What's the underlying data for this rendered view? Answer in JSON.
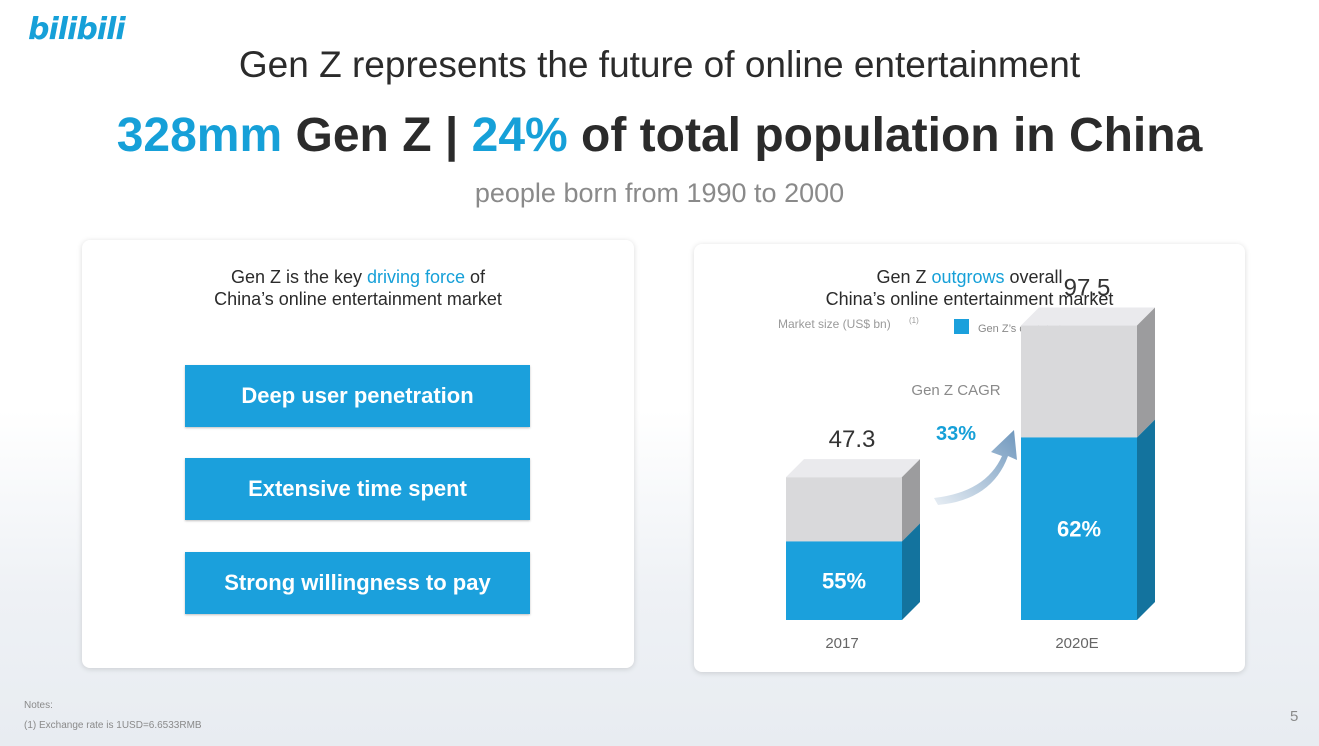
{
  "logo": "bilibili",
  "title": "Gen Z represents the future of online entertainment",
  "headline": {
    "part1": "328mm",
    "part2": " Gen Z | ",
    "part3": "24%",
    "part4": " of total population in China"
  },
  "subtitle": "people born from 1990 to 2000",
  "left_panel": {
    "heading_pre": "Gen Z is the key ",
    "heading_accent": "driving force",
    "heading_post": " of",
    "heading_line2": "China’s online entertainment market",
    "features": [
      "Deep user penetration",
      "Extensive time spent",
      "Strong willingness to pay"
    ]
  },
  "right_panel": {
    "heading_pre": "Gen Z ",
    "heading_accent": "outgrows",
    "heading_post": " overall",
    "heading_line2": "China’s online entertainment market"
  },
  "chart_data": {
    "type": "bar",
    "title": "Gen Z outgrows overall China’s online entertainment market",
    "ylabel": "Market size (US$ bn)",
    "ylabel_note": "(1)",
    "categories": [
      "2017",
      "2020E"
    ],
    "totals": [
      47.3,
      97.5
    ],
    "total_labels": [
      "47.3",
      "97.5"
    ],
    "genz_share_labels": [
      "55%",
      "62%"
    ],
    "genz_share": [
      0.55,
      0.62
    ],
    "legend": "Gen Z’s contribution",
    "cagr_label": "Gen Z CAGR",
    "cagr_value": "33%",
    "ylim": [
      0,
      100
    ],
    "colors": {
      "genz": "#1ba0dc",
      "rest": "#d9d9db"
    }
  },
  "notes": {
    "label": "Notes:",
    "item1": "(1)     Exchange rate is 1USD=6.6533RMB"
  },
  "page_number": "5"
}
